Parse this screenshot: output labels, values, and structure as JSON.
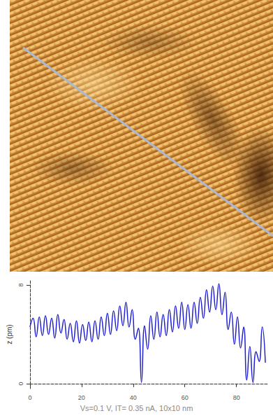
{
  "chart_data": {
    "type": "line",
    "ylabel": "z (pm)",
    "annotation": "Vs=0.1 V, IT= 0.35 nA, 10x10 nm",
    "x": [
      0,
      1.2,
      2.4,
      3.6,
      4.8,
      6,
      7.2,
      8.4,
      9.6,
      10.8,
      12,
      13.2,
      14.4,
      15.6,
      16.8,
      18,
      19.2,
      20.4,
      21.6,
      22.8,
      24,
      25.2,
      26.4,
      27.6,
      28.8,
      30,
      31.2,
      32.4,
      33.6,
      34.8,
      36,
      37.2,
      38.4,
      39.6,
      40.8,
      42,
      43.2,
      44.4,
      45.6,
      46.8,
      48,
      49.2,
      50.4,
      51.6,
      52.8,
      54,
      55.2,
      56.4,
      57.6,
      58.8,
      60,
      61.2,
      62.4,
      63.6,
      64.8,
      66,
      67.2,
      68.4,
      69.6,
      70.8,
      72,
      73.2,
      74.4,
      75.6,
      76.8,
      78,
      79.2,
      80.4,
      81.6,
      82.8,
      84,
      85.2,
      86.4,
      87.6,
      88.8,
      90,
      91.2
    ],
    "series": [
      {
        "color": "#1f1fd0",
        "line_style": "solid",
        "values": [
          4.6,
          5.3,
          3.8,
          5.4,
          3.9,
          5.5,
          4.0,
          5.3,
          3.7,
          5.6,
          4.1,
          5.2,
          3.6,
          4.9,
          3.4,
          5.1,
          3.3,
          4.8,
          3.5,
          5.0,
          3.4,
          5.1,
          3.6,
          5.4,
          3.9,
          5.7,
          4.0,
          5.9,
          4.3,
          6.3,
          4.7,
          6.6,
          4.6,
          6.0,
          3.6,
          4.5,
          0.1,
          4.7,
          2.8,
          5.5,
          3.6,
          5.8,
          3.8,
          5.6,
          3.9,
          6.0,
          4.2,
          6.3,
          4.5,
          6.6,
          4.4,
          6.4,
          4.5,
          6.6,
          4.9,
          7.0,
          5.3,
          7.6,
          5.8,
          7.9,
          6.0,
          8.1,
          5.6,
          7.4,
          4.4,
          5.8,
          3.2,
          5.4,
          2.9,
          4.6,
          0.3,
          3.0,
          0.1,
          2.6,
          1.8,
          4.6,
          1.7
        ]
      }
    ],
    "xlim": [
      0,
      92
    ],
    "xticks": [
      0,
      20,
      40,
      60,
      80
    ],
    "ylim": [
      -0.4,
      8.4
    ],
    "yticks": [
      0,
      8
    ],
    "grid": false
  }
}
